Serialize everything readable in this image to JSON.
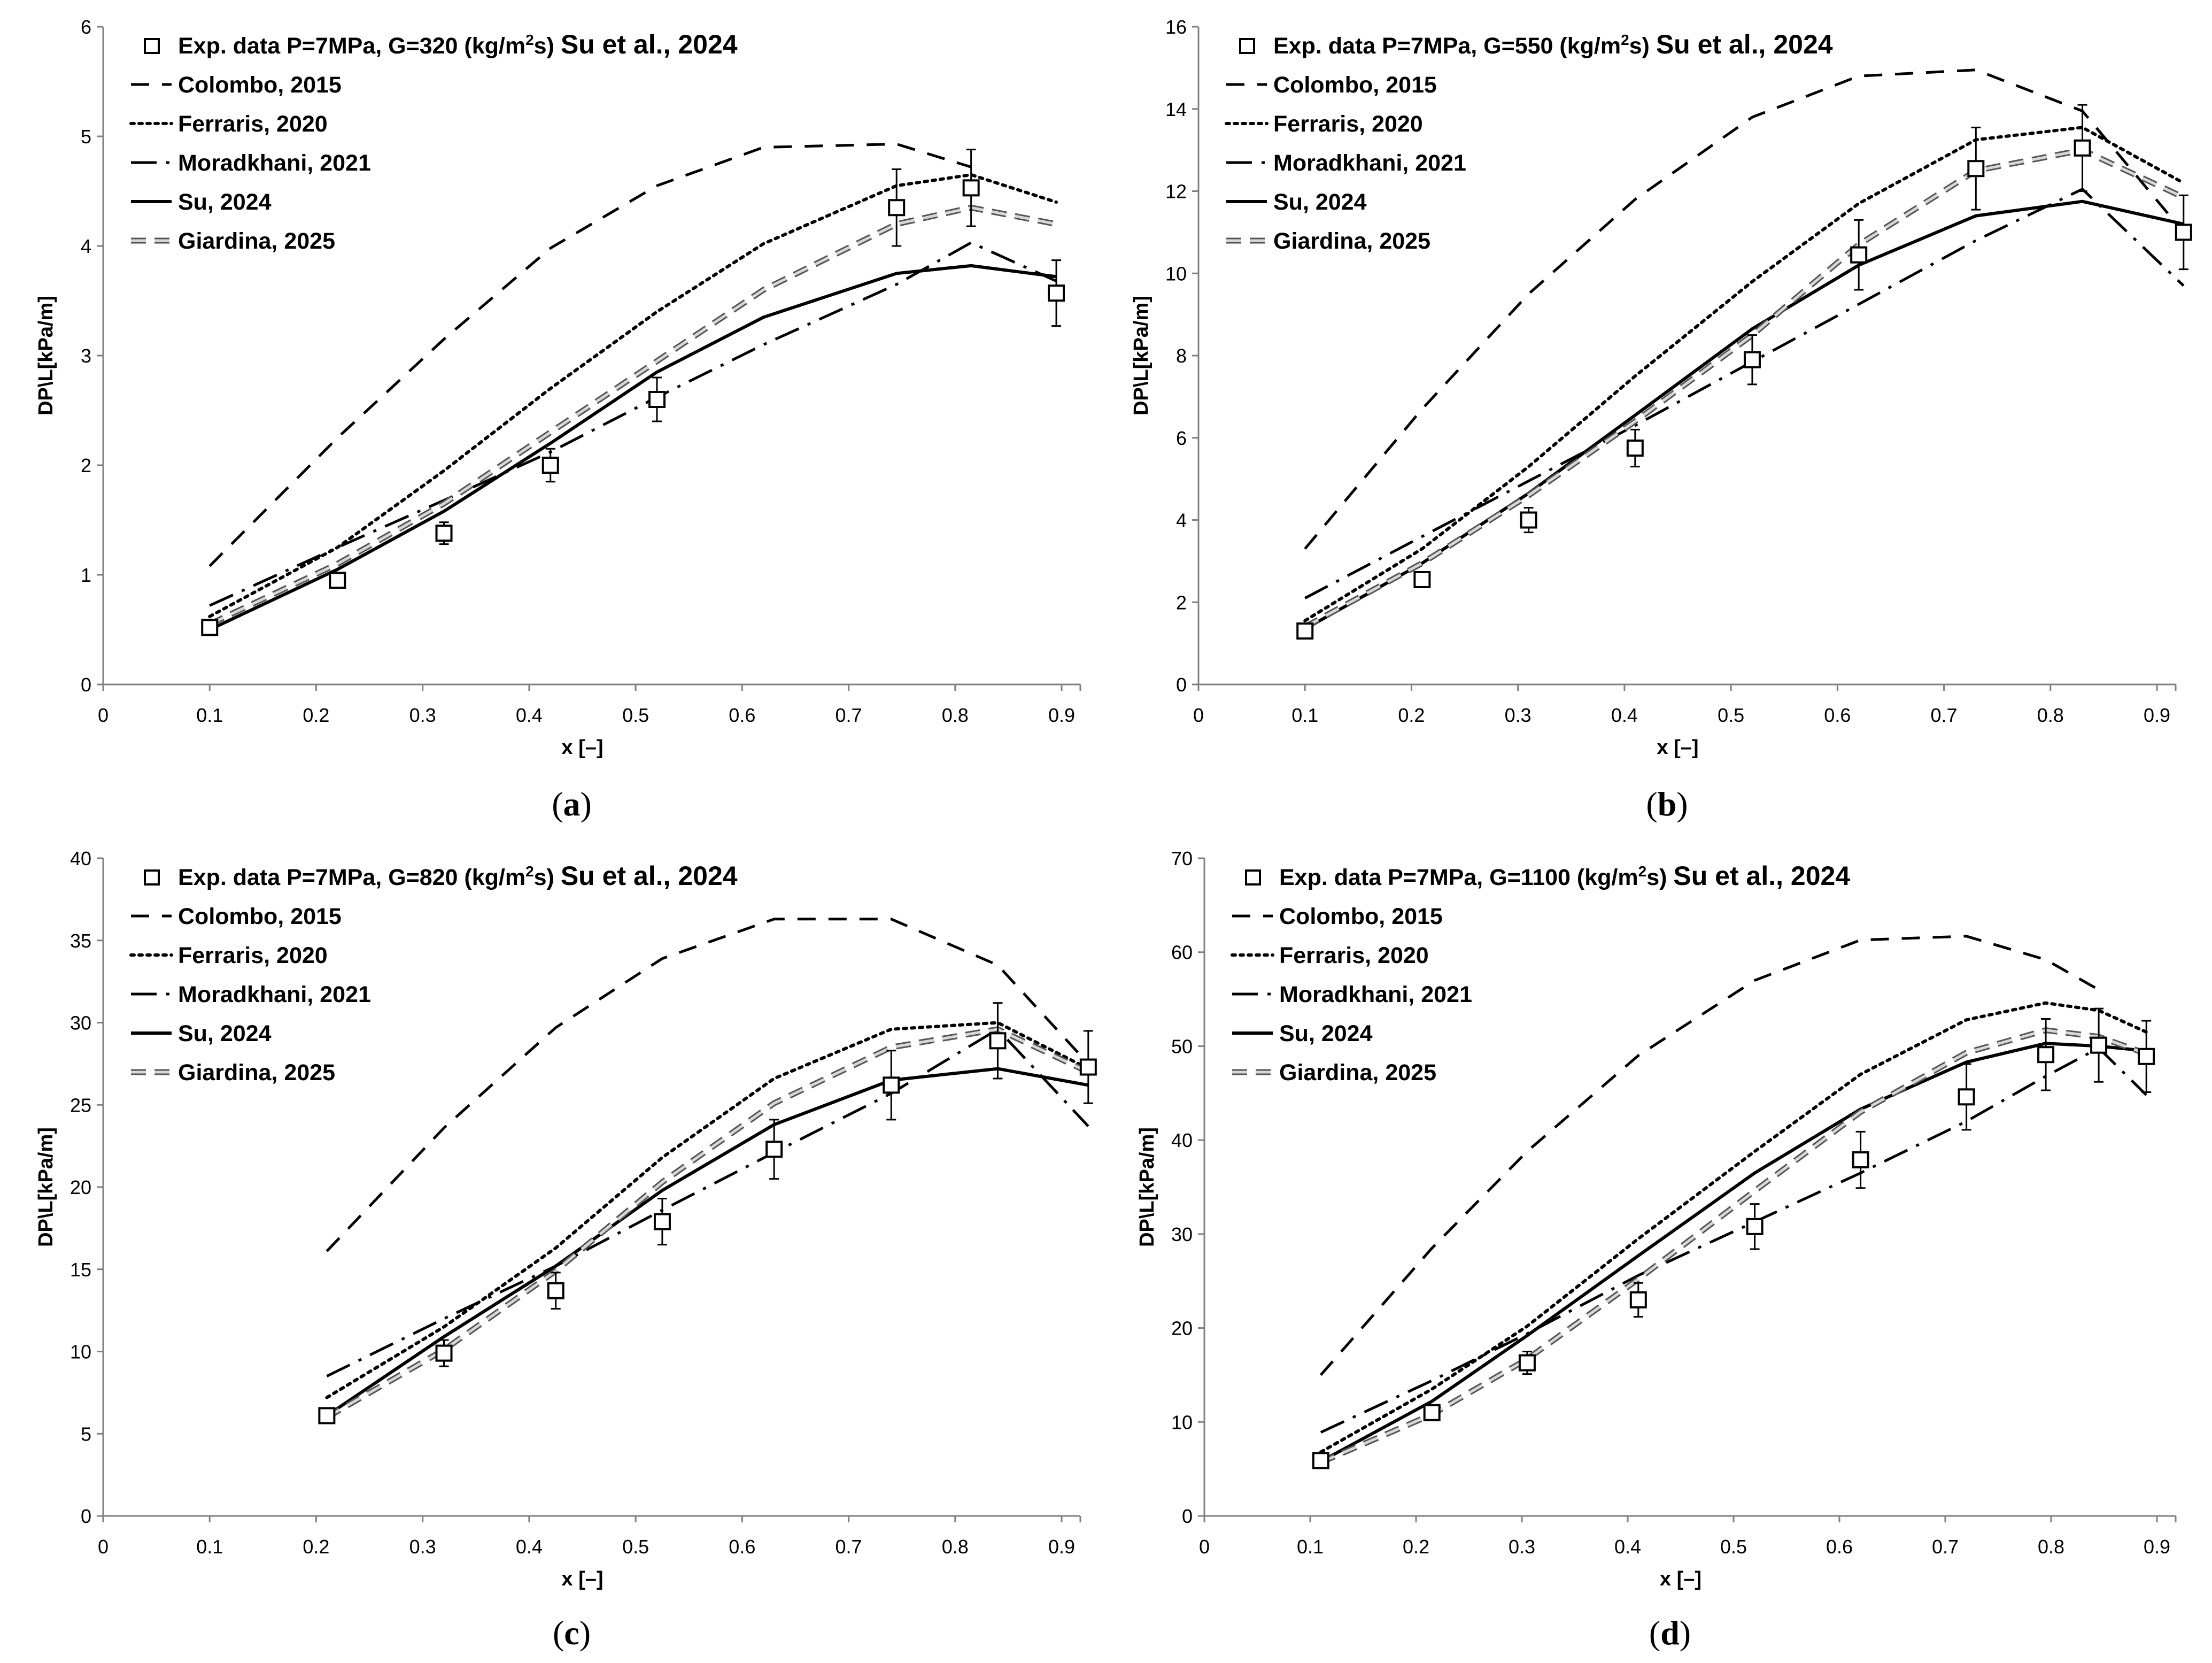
{
  "chart_data": [
    {
      "panel_label": "a",
      "type": "line",
      "xlabel": "x [–]",
      "ylabel": "DP\\L[kPa/m]",
      "xlim": [
        0,
        0.9
      ],
      "ylim": [
        0,
        6
      ],
      "xticks": [
        0,
        0.1,
        0.2,
        0.3,
        0.4,
        0.5,
        0.6,
        0.7,
        0.8,
        0.9
      ],
      "yticks": [
        0,
        1,
        2,
        3,
        4,
        5,
        6
      ],
      "legend": {
        "exp_label": "Exp. data P=7MPa, G=320",
        "exp_unit_prefix": "(kg/m",
        "exp_unit_sup": "2",
        "exp_unit_suffix": "s)",
        "exp_ref": "Su et al., 2024"
      },
      "experimental": {
        "x": [
          0.1,
          0.22,
          0.32,
          0.42,
          0.52,
          0.745,
          0.815,
          0.895
        ],
        "y": [
          0.52,
          0.95,
          1.38,
          2.0,
          2.6,
          4.35,
          4.53,
          3.57
        ],
        "err": [
          0,
          0,
          0.1,
          0.15,
          0.2,
          0.35,
          0.35,
          0.3
        ]
      },
      "series": [
        {
          "name": "Colombo, 2015",
          "style": "dashed",
          "x": [
            0.1,
            0.22,
            0.32,
            0.42,
            0.52,
            0.62,
            0.745,
            0.815
          ],
          "y": [
            1.08,
            2.25,
            3.15,
            3.98,
            4.55,
            4.9,
            4.93,
            4.72
          ]
        },
        {
          "name": "Ferraris, 2020",
          "style": "dotted",
          "x": [
            0.1,
            0.22,
            0.32,
            0.42,
            0.52,
            0.62,
            0.745,
            0.815,
            0.895
          ],
          "y": [
            0.62,
            1.25,
            1.95,
            2.7,
            3.4,
            4.02,
            4.55,
            4.65,
            4.4
          ]
        },
        {
          "name": "Moradkhani, 2021",
          "style": "dashdot",
          "x": [
            0.1,
            0.22,
            0.32,
            0.42,
            0.52,
            0.62,
            0.745,
            0.815,
            0.895
          ],
          "y": [
            0.72,
            1.25,
            1.68,
            2.12,
            2.62,
            3.1,
            3.65,
            4.03,
            3.68
          ]
        },
        {
          "name": "Su, 2024",
          "style": "solid",
          "x": [
            0.1,
            0.22,
            0.32,
            0.42,
            0.52,
            0.62,
            0.745,
            0.815,
            0.895
          ],
          "y": [
            0.5,
            1.05,
            1.58,
            2.2,
            2.85,
            3.35,
            3.75,
            3.82,
            3.72
          ]
        },
        {
          "name": "Giardina, 2025",
          "style": "dashdouble",
          "x": [
            0.1,
            0.22,
            0.32,
            0.42,
            0.52,
            0.62,
            0.745,
            0.815,
            0.895
          ],
          "y": [
            0.55,
            1.1,
            1.65,
            2.3,
            2.95,
            3.6,
            4.2,
            4.35,
            4.2
          ]
        }
      ]
    },
    {
      "panel_label": "b",
      "type": "line",
      "xlabel": "x [–]",
      "ylabel": "DP\\L[kPa/m]",
      "xlim": [
        0,
        0.9
      ],
      "ylim": [
        0,
        16
      ],
      "xticks": [
        0,
        0.1,
        0.2,
        0.3,
        0.4,
        0.5,
        0.6,
        0.7,
        0.8,
        0.9
      ],
      "yticks": [
        0,
        2,
        4,
        6,
        8,
        10,
        12,
        14,
        16
      ],
      "legend": {
        "exp_label": "Exp. data P=7MPa, G=550",
        "exp_unit_prefix": "(kg/m",
        "exp_unit_sup": "2",
        "exp_unit_suffix": "s)",
        "exp_ref": "Su et al., 2024"
      },
      "experimental": {
        "x": [
          0.1,
          0.21,
          0.31,
          0.41,
          0.52,
          0.62,
          0.73,
          0.83,
          0.925
        ],
        "y": [
          1.3,
          2.55,
          4.0,
          5.75,
          7.9,
          10.45,
          12.55,
          13.05,
          11.0
        ],
        "err": [
          0,
          0,
          0.3,
          0.45,
          0.6,
          0.85,
          1.0,
          1.05,
          0.9
        ]
      },
      "series": [
        {
          "name": "Colombo, 2015",
          "style": "dashed",
          "x": [
            0.1,
            0.21,
            0.31,
            0.41,
            0.52,
            0.62,
            0.73,
            0.83,
            0.925
          ],
          "y": [
            3.3,
            6.7,
            9.5,
            11.8,
            13.8,
            14.8,
            14.95,
            13.95,
            11.0
          ]
        },
        {
          "name": "Ferraris, 2020",
          "style": "dotted",
          "x": [
            0.1,
            0.21,
            0.31,
            0.41,
            0.52,
            0.62,
            0.73,
            0.83,
            0.925
          ],
          "y": [
            1.55,
            3.3,
            5.3,
            7.5,
            9.8,
            11.7,
            13.25,
            13.55,
            12.2
          ]
        },
        {
          "name": "Moradkhani, 2021",
          "style": "dashdot",
          "x": [
            0.1,
            0.21,
            0.31,
            0.41,
            0.52,
            0.62,
            0.73,
            0.83,
            0.925
          ],
          "y": [
            2.1,
            3.6,
            4.95,
            6.3,
            7.85,
            9.25,
            10.8,
            12.05,
            9.7
          ]
        },
        {
          "name": "Su, 2024",
          "style": "solid",
          "x": [
            0.1,
            0.21,
            0.31,
            0.41,
            0.52,
            0.62,
            0.73,
            0.83,
            0.925
          ],
          "y": [
            1.35,
            2.95,
            4.65,
            6.55,
            8.65,
            10.2,
            11.4,
            11.75,
            11.2
          ]
        },
        {
          "name": "Giardina, 2025",
          "style": "dashdouble",
          "x": [
            0.1,
            0.21,
            0.31,
            0.41,
            0.52,
            0.62,
            0.73,
            0.83,
            0.925
          ],
          "y": [
            1.4,
            2.95,
            4.6,
            6.4,
            8.5,
            10.7,
            12.5,
            13.0,
            11.85
          ]
        }
      ]
    },
    {
      "panel_label": "c",
      "type": "line",
      "xlabel": "x [–]",
      "ylabel": "DP\\L[kPa/m]",
      "xlim": [
        0,
        0.9
      ],
      "ylim": [
        0,
        40
      ],
      "xticks": [
        0,
        0.1,
        0.2,
        0.3,
        0.4,
        0.5,
        0.6,
        0.7,
        0.8,
        0.9
      ],
      "yticks": [
        0,
        5,
        10,
        15,
        20,
        25,
        30,
        35,
        40
      ],
      "legend": {
        "exp_label": "Exp. data P=7MPa, G=820",
        "exp_unit_prefix": "(kg/m",
        "exp_unit_sup": "2",
        "exp_unit_suffix": "s)",
        "exp_ref": "Su et al., 2024"
      },
      "experimental": {
        "x": [
          0.21,
          0.32,
          0.425,
          0.525,
          0.63,
          0.74,
          0.84,
          0.925
        ],
        "y": [
          6.1,
          9.9,
          13.7,
          17.9,
          22.3,
          26.2,
          28.9,
          27.3
        ],
        "err": [
          0,
          0.8,
          1.1,
          1.4,
          1.8,
          2.1,
          2.3,
          2.2
        ]
      },
      "series": [
        {
          "name": "Colombo, 2015",
          "style": "dashed",
          "x": [
            0.21,
            0.32,
            0.425,
            0.525,
            0.63,
            0.74,
            0.84,
            0.925
          ],
          "y": [
            16.1,
            23.6,
            29.7,
            33.9,
            36.3,
            36.3,
            33.5,
            27.5
          ]
        },
        {
          "name": "Ferraris, 2020",
          "style": "dotted",
          "x": [
            0.21,
            0.32,
            0.425,
            0.525,
            0.63,
            0.74,
            0.84,
            0.925
          ],
          "y": [
            7.2,
            11.5,
            16.3,
            21.8,
            26.6,
            29.6,
            30.0,
            27.2
          ]
        },
        {
          "name": "Moradkhani, 2021",
          "style": "dashdot",
          "x": [
            0.21,
            0.32,
            0.425,
            0.525,
            0.63,
            0.74,
            0.84,
            0.925
          ],
          "y": [
            8.5,
            12.0,
            15.2,
            18.6,
            22.1,
            25.7,
            29.6,
            23.7
          ]
        },
        {
          "name": "Su, 2024",
          "style": "solid",
          "x": [
            0.21,
            0.32,
            0.425,
            0.525,
            0.63,
            0.74,
            0.84,
            0.925
          ],
          "y": [
            6.1,
            10.9,
            15.2,
            19.8,
            23.8,
            26.5,
            27.2,
            26.2
          ]
        },
        {
          "name": "Giardina, 2025",
          "style": "dashdouble",
          "x": [
            0.21,
            0.32,
            0.425,
            0.525,
            0.63,
            0.74,
            0.84,
            0.925
          ],
          "y": [
            6.0,
            10.1,
            14.9,
            20.3,
            25.1,
            28.5,
            29.6,
            27.0
          ]
        }
      ]
    },
    {
      "panel_label": "d",
      "type": "line",
      "xlabel": "x [–]",
      "ylabel": "DP\\L[kPa/m]",
      "xlim": [
        0,
        0.9
      ],
      "ylim": [
        0,
        70
      ],
      "xticks": [
        0,
        0.1,
        0.2,
        0.3,
        0.4,
        0.5,
        0.6,
        0.7,
        0.8,
        0.9
      ],
      "yticks": [
        0,
        10,
        20,
        30,
        40,
        50,
        60,
        70
      ],
      "legend": {
        "exp_label": "Exp. data P=7MPa, G=1100",
        "exp_unit_prefix": "(kg/m",
        "exp_unit_sup": "2",
        "exp_unit_suffix": "s)",
        "exp_ref": "Su et al., 2024"
      },
      "experimental": {
        "x": [
          0.11,
          0.215,
          0.305,
          0.41,
          0.52,
          0.62,
          0.72,
          0.795,
          0.845,
          0.89
        ],
        "y": [
          5.9,
          11.0,
          16.3,
          23.0,
          30.8,
          37.9,
          44.6,
          49.1,
          50.1,
          48.9
        ],
        "err": [
          0,
          0,
          1.2,
          1.8,
          2.4,
          3.0,
          3.5,
          3.8,
          3.9,
          3.8
        ]
      },
      "series": [
        {
          "name": "Colombo, 2015",
          "style": "dashed",
          "x": [
            0.11,
            0.215,
            0.305,
            0.41,
            0.52,
            0.62,
            0.72,
            0.795,
            0.845
          ],
          "y": [
            15.0,
            28.5,
            38.8,
            49.0,
            57.0,
            61.3,
            61.7,
            59.2,
            56.0
          ]
        },
        {
          "name": "Ferraris, 2020",
          "style": "dotted",
          "x": [
            0.11,
            0.215,
            0.305,
            0.41,
            0.52,
            0.62,
            0.72,
            0.795,
            0.845,
            0.89
          ],
          "y": [
            6.8,
            13.5,
            20.2,
            29.5,
            38.8,
            47.0,
            52.8,
            54.6,
            53.8,
            51.5
          ]
        },
        {
          "name": "Moradkhani, 2021",
          "style": "dashdot",
          "x": [
            0.11,
            0.215,
            0.305,
            0.41,
            0.52,
            0.62,
            0.72,
            0.795,
            0.845,
            0.89
          ],
          "y": [
            8.9,
            14.4,
            19.4,
            25.6,
            31.3,
            36.5,
            42.0,
            46.8,
            49.8,
            44.8
          ]
        },
        {
          "name": "Su, 2024",
          "style": "solid",
          "x": [
            0.11,
            0.215,
            0.305,
            0.41,
            0.52,
            0.62,
            0.72,
            0.795,
            0.845,
            0.89
          ],
          "y": [
            5.8,
            12.2,
            19.2,
            27.7,
            36.5,
            43.3,
            48.3,
            50.3,
            50.0,
            49.5
          ]
        },
        {
          "name": "Giardina, 2025",
          "style": "dashdouble",
          "x": [
            0.11,
            0.215,
            0.305,
            0.41,
            0.52,
            0.62,
            0.72,
            0.795,
            0.845,
            0.89
          ],
          "y": [
            5.7,
            10.8,
            16.7,
            25.2,
            34.6,
            43.0,
            49.3,
            51.7,
            51.0,
            49.2
          ]
        }
      ]
    }
  ]
}
